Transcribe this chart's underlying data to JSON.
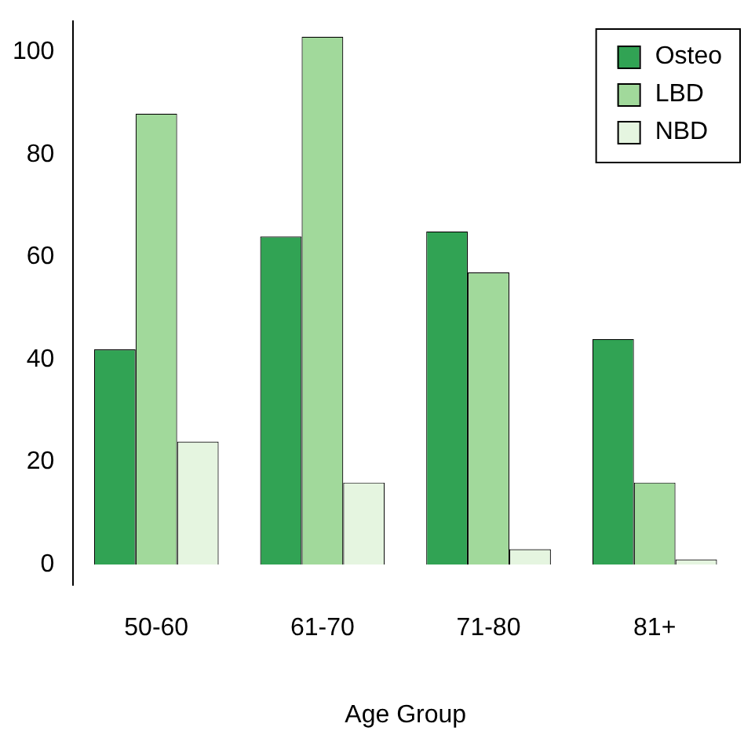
{
  "chart_data": {
    "type": "bar",
    "xlabel": "Age Group",
    "categories": [
      "50-60",
      "61-70",
      "71-80",
      "81+"
    ],
    "series": [
      {
        "name": "Osteo",
        "color": "#31a354",
        "values": [
          42,
          64,
          65,
          44
        ]
      },
      {
        "name": "LBD",
        "color": "#a1d99b",
        "values": [
          88,
          103,
          57,
          16
        ]
      },
      {
        "name": "NBD",
        "color": "#e5f5e0",
        "values": [
          24,
          16,
          3,
          1
        ]
      }
    ],
    "ylim": [
      -4,
      106
    ],
    "yticks": [
      0,
      20,
      40,
      60,
      80,
      100
    ],
    "grid": false,
    "legend": "top right"
  }
}
